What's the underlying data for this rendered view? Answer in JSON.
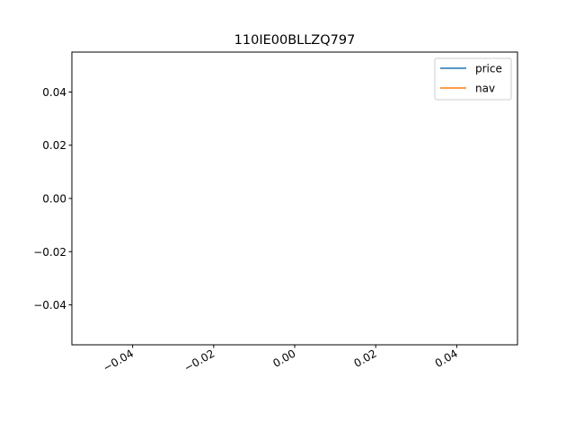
{
  "chart_data": {
    "type": "line",
    "title": "110IE00BLLZQ797",
    "xlabel": "",
    "ylabel": "",
    "xlim": [
      -0.055,
      0.055
    ],
    "ylim": [
      -0.055,
      0.055
    ],
    "xticks": [
      -0.04,
      -0.02,
      0.0,
      0.02,
      0.04
    ],
    "xtick_labels": [
      "−0.04",
      "−0.02",
      "0.00",
      "0.02",
      "0.04"
    ],
    "yticks": [
      0.04,
      0.02,
      0.0,
      -0.02,
      -0.04
    ],
    "ytick_labels": [
      "0.04",
      "0.02",
      "0.00",
      "−0.02",
      "−0.04"
    ],
    "grid": false,
    "legend_position": "top-right",
    "series": [
      {
        "name": "price",
        "color": "#1f77b4",
        "x": [],
        "y": []
      },
      {
        "name": "nav",
        "color": "#ff7f0e",
        "x": [],
        "y": []
      }
    ]
  }
}
